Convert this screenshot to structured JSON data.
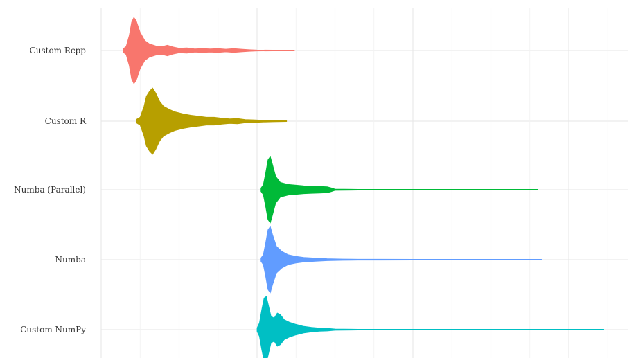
{
  "chart_data": {
    "type": "violin",
    "orientation": "horizontal",
    "title": "",
    "xlabel": "",
    "ylabel": "",
    "x_tick_labels_shown": false,
    "grid": true,
    "legend": "none",
    "categories": [
      "Custom Rcpp",
      "Custom R",
      "Numba (Parallel)",
      "Numba",
      "Custom NumPy"
    ],
    "xlim": [
      0,
      8
    ],
    "series": [
      {
        "category": "Custom Rcpp",
        "color": "#F8766D",
        "min": 0.28,
        "max": 2.48,
        "mode": 0.4,
        "peak_width": 0.8,
        "tail": [
          [
            0.28,
            0.05
          ],
          [
            0.32,
            0.12
          ],
          [
            0.36,
            0.45
          ],
          [
            0.39,
            0.85
          ],
          [
            0.42,
            1.0
          ],
          [
            0.45,
            0.9
          ],
          [
            0.5,
            0.55
          ],
          [
            0.56,
            0.3
          ],
          [
            0.62,
            0.2
          ],
          [
            0.7,
            0.14
          ],
          [
            0.78,
            0.12
          ],
          [
            0.85,
            0.16
          ],
          [
            0.92,
            0.11
          ],
          [
            1.0,
            0.07
          ],
          [
            1.1,
            0.08
          ],
          [
            1.2,
            0.05
          ],
          [
            1.3,
            0.06
          ],
          [
            1.4,
            0.05
          ],
          [
            1.5,
            0.06
          ],
          [
            1.6,
            0.04
          ],
          [
            1.7,
            0.06
          ],
          [
            1.8,
            0.04
          ],
          [
            1.9,
            0.025
          ],
          [
            2.0,
            0.015
          ],
          [
            2.2,
            0.01
          ],
          [
            2.48,
            0.008
          ]
        ]
      },
      {
        "category": "Custom R",
        "color": "#B79F00",
        "min": 0.45,
        "max": 2.38,
        "mode": 0.6,
        "peak_width": 0.8,
        "tail": [
          [
            0.45,
            0.05
          ],
          [
            0.5,
            0.12
          ],
          [
            0.55,
            0.45
          ],
          [
            0.58,
            0.75
          ],
          [
            0.62,
            0.9
          ],
          [
            0.66,
            1.0
          ],
          [
            0.7,
            0.85
          ],
          [
            0.75,
            0.6
          ],
          [
            0.8,
            0.45
          ],
          [
            0.88,
            0.35
          ],
          [
            0.95,
            0.28
          ],
          [
            1.05,
            0.22
          ],
          [
            1.15,
            0.18
          ],
          [
            1.25,
            0.15
          ],
          [
            1.35,
            0.12
          ],
          [
            1.45,
            0.12
          ],
          [
            1.55,
            0.09
          ],
          [
            1.65,
            0.07
          ],
          [
            1.75,
            0.08
          ],
          [
            1.85,
            0.05
          ],
          [
            1.95,
            0.04
          ],
          [
            2.05,
            0.03
          ],
          [
            2.2,
            0.02
          ],
          [
            2.38,
            0.01
          ]
        ]
      },
      {
        "category": "Numba (Parallel)",
        "color": "#00BA38",
        "min": 2.05,
        "max": 5.6,
        "mode": 2.15,
        "peak_width": 0.8,
        "tail": [
          [
            2.05,
            0.05
          ],
          [
            2.08,
            0.15
          ],
          [
            2.11,
            0.5
          ],
          [
            2.14,
            0.9
          ],
          [
            2.17,
            1.0
          ],
          [
            2.2,
            0.75
          ],
          [
            2.24,
            0.4
          ],
          [
            2.3,
            0.22
          ],
          [
            2.4,
            0.16
          ],
          [
            2.5,
            0.14
          ],
          [
            2.6,
            0.12
          ],
          [
            2.7,
            0.11
          ],
          [
            2.8,
            0.1
          ],
          [
            2.9,
            0.09
          ],
          [
            2.95,
            0.06
          ],
          [
            3.0,
            0.02
          ],
          [
            3.3,
            0.012
          ],
          [
            4.0,
            0.01
          ],
          [
            5.0,
            0.01
          ],
          [
            5.6,
            0.008
          ]
        ]
      },
      {
        "category": "Numba",
        "color": "#619CFF",
        "min": 2.05,
        "max": 5.65,
        "mode": 2.15,
        "peak_width": 0.8,
        "tail": [
          [
            2.05,
            0.05
          ],
          [
            2.08,
            0.15
          ],
          [
            2.11,
            0.5
          ],
          [
            2.14,
            0.9
          ],
          [
            2.17,
            1.0
          ],
          [
            2.2,
            0.75
          ],
          [
            2.25,
            0.4
          ],
          [
            2.32,
            0.25
          ],
          [
            2.4,
            0.15
          ],
          [
            2.5,
            0.1
          ],
          [
            2.6,
            0.07
          ],
          [
            2.75,
            0.05
          ],
          [
            2.9,
            0.03
          ],
          [
            3.1,
            0.02
          ],
          [
            3.3,
            0.015
          ],
          [
            3.6,
            0.015
          ],
          [
            4.0,
            0.012
          ],
          [
            4.5,
            0.01
          ],
          [
            5.0,
            0.01
          ],
          [
            5.4,
            0.012
          ],
          [
            5.65,
            0.008
          ]
        ]
      },
      {
        "category": "Custom NumPy",
        "color": "#00BFC4",
        "min": 2.0,
        "max": 6.45,
        "mode": 2.1,
        "peak_width": 0.8,
        "tail": [
          [
            2.0,
            0.05
          ],
          [
            2.03,
            0.2
          ],
          [
            2.06,
            0.6
          ],
          [
            2.09,
            0.95
          ],
          [
            2.12,
            1.0
          ],
          [
            2.15,
            0.7
          ],
          [
            2.18,
            0.4
          ],
          [
            2.22,
            0.35
          ],
          [
            2.26,
            0.5
          ],
          [
            2.3,
            0.45
          ],
          [
            2.35,
            0.3
          ],
          [
            2.42,
            0.22
          ],
          [
            2.5,
            0.16
          ],
          [
            2.6,
            0.1
          ],
          [
            2.7,
            0.07
          ],
          [
            2.8,
            0.05
          ],
          [
            2.9,
            0.04
          ],
          [
            3.0,
            0.02
          ],
          [
            3.3,
            0.01
          ],
          [
            4.0,
            0.01
          ],
          [
            5.0,
            0.01
          ],
          [
            6.0,
            0.009
          ],
          [
            6.45,
            0.008
          ]
        ]
      }
    ]
  }
}
